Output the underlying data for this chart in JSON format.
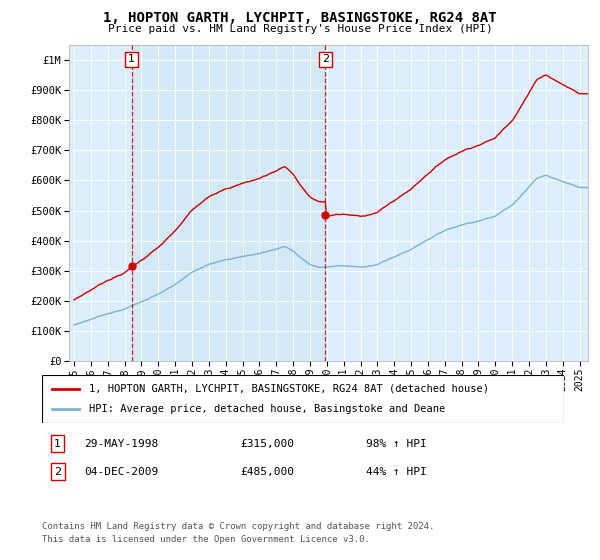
{
  "title": "1, HOPTON GARTH, LYCHPIT, BASINGSTOKE, RG24 8AT",
  "subtitle": "Price paid vs. HM Land Registry's House Price Index (HPI)",
  "hpi_color": "#7ab3d4",
  "price_color": "#cc0000",
  "marker_color": "#cc0000",
  "dashed_color": "#cc0000",
  "background_color": "#ddeeff",
  "highlight_color": "#cce0f0",
  "legend_price_label": "1, HOPTON GARTH, LYCHPIT, BASINGSTOKE, RG24 8AT (detached house)",
  "legend_hpi_label": "HPI: Average price, detached house, Basingstoke and Deane",
  "sale1_date": "29-MAY-1998",
  "sale1_price": 315000,
  "sale1_pct": "98% ↑ HPI",
  "sale2_date": "04-DEC-2009",
  "sale2_price": 485000,
  "sale2_pct": "44% ↑ HPI",
  "footnote1": "Contains HM Land Registry data © Crown copyright and database right 2024.",
  "footnote2": "This data is licensed under the Open Government Licence v3.0.",
  "ylim_min": 0,
  "ylim_max": 1050000,
  "sale1_year": 1998.42,
  "sale2_year": 2009.92,
  "xmin": 1994.7,
  "xmax": 2025.5
}
